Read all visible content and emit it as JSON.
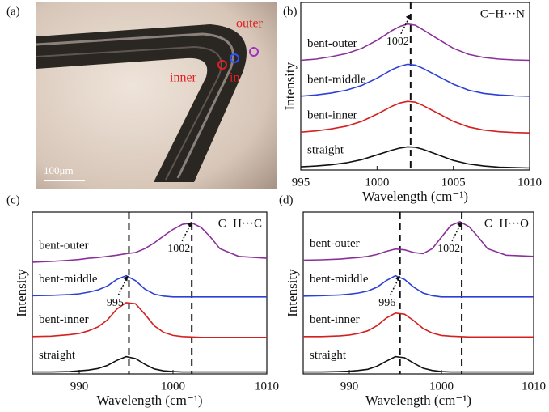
{
  "photo_panel": {
    "label": "(a)",
    "outer": "outer",
    "inner": "inner",
    "in": "in",
    "scale": "100μm"
  },
  "chart_data": [
    {
      "type": "line",
      "panel": "(b)",
      "label": "C−H···N",
      "x_label": "Wavelength (cm⁻¹)",
      "y_label": "Intensity",
      "x": [
        995,
        996,
        997,
        998,
        999,
        1000,
        1001,
        1001.5,
        1002,
        1002.5,
        1003,
        1004,
        1005,
        1006,
        1007,
        1008,
        1009,
        1010
      ],
      "xlim": [
        995,
        1010
      ],
      "xticks": [
        995,
        1000,
        1005,
        1010
      ],
      "ylim": [
        0,
        4.2
      ],
      "reference_lines": [
        1002.2
      ],
      "annotations": [
        {
          "text": "1002",
          "x": 1002.2,
          "y": 3.9
        }
      ],
      "series": [
        {
          "name": "straight",
          "color": "#111111",
          "values": [
            0.08,
            0.1,
            0.13,
            0.18,
            0.26,
            0.38,
            0.5,
            0.55,
            0.58,
            0.57,
            0.52,
            0.38,
            0.24,
            0.15,
            0.1,
            0.07,
            0.06,
            0.05
          ]
        },
        {
          "name": "bent-inner",
          "color": "#d42020",
          "values": [
            0.95,
            0.98,
            1.03,
            1.1,
            1.22,
            1.4,
            1.6,
            1.68,
            1.72,
            1.7,
            1.62,
            1.42,
            1.22,
            1.08,
            1.0,
            0.96,
            0.94,
            0.93
          ]
        },
        {
          "name": "bent-middle",
          "color": "#2c3fd6",
          "values": [
            1.85,
            1.88,
            1.93,
            2.0,
            2.12,
            2.3,
            2.52,
            2.6,
            2.65,
            2.63,
            2.55,
            2.35,
            2.15,
            2.0,
            1.92,
            1.88,
            1.86,
            1.85
          ]
        },
        {
          "name": "bent-outer",
          "color": "#8b2f9b",
          "values": [
            2.75,
            2.78,
            2.84,
            2.92,
            3.05,
            3.25,
            3.5,
            3.6,
            3.66,
            3.63,
            3.52,
            3.28,
            3.05,
            2.9,
            2.82,
            2.78,
            2.76,
            2.75
          ]
        }
      ]
    },
    {
      "type": "line",
      "panel": "(c)",
      "label": "C−H···C",
      "x_label": "Wavelength (cm⁻¹)",
      "y_label": "Intensity",
      "x": [
        985,
        987,
        989,
        990,
        991,
        992,
        993,
        994,
        995,
        996,
        997,
        998,
        999,
        1000,
        1001,
        1002,
        1003,
        1004,
        1005,
        1007,
        1010
      ],
      "xlim": [
        985,
        1010
      ],
      "xticks": [
        990,
        1000,
        1010
      ],
      "ylim": [
        0,
        4.2
      ],
      "reference_lines": [
        995.3,
        1002
      ],
      "annotations": [
        {
          "text": "1002",
          "x": 1002,
          "y": 3.95
        },
        {
          "text": "995",
          "x": 995.2,
          "y": 2.55
        }
      ],
      "series": [
        {
          "name": "straight",
          "color": "#111111",
          "values": [
            0.05,
            0.05,
            0.06,
            0.08,
            0.1,
            0.14,
            0.22,
            0.35,
            0.45,
            0.4,
            0.25,
            0.13,
            0.08,
            0.06,
            0.05,
            0.05,
            0.05,
            0.05,
            0.05,
            0.05,
            0.05
          ]
        },
        {
          "name": "bent-inner",
          "color": "#d42020",
          "values": [
            0.97,
            0.98,
            1.02,
            1.05,
            1.12,
            1.22,
            1.4,
            1.68,
            1.85,
            1.82,
            1.55,
            1.25,
            1.08,
            1.0,
            0.97,
            0.96,
            0.95,
            0.95,
            0.95,
            0.95,
            0.95
          ]
        },
        {
          "name": "bent-middle",
          "color": "#2c3fd6",
          "values": [
            2.03,
            2.04,
            2.06,
            2.08,
            2.12,
            2.18,
            2.28,
            2.45,
            2.55,
            2.42,
            2.2,
            2.07,
            2.02,
            2.0,
            2.0,
            2.0,
            2.0,
            2.0,
            2.0,
            2.0,
            2.0
          ]
        },
        {
          "name": "bent-outer",
          "color": "#8b2f9b",
          "values": [
            2.9,
            2.92,
            2.95,
            2.97,
            3.0,
            3.02,
            3.05,
            3.08,
            3.12,
            3.15,
            3.25,
            3.4,
            3.58,
            3.75,
            3.88,
            3.92,
            3.8,
            3.55,
            3.25,
            3.05,
            3.0
          ]
        }
      ]
    },
    {
      "type": "line",
      "panel": "(d)",
      "label": "C−H···O",
      "x_label": "Wavelength (cm⁻¹)",
      "y_label": "Intensity",
      "x": [
        985,
        987,
        989,
        990,
        991,
        992,
        993,
        994,
        995,
        996,
        997,
        998,
        999,
        1000,
        1001,
        1002,
        1003,
        1004,
        1005,
        1007,
        1010
      ],
      "xlim": [
        985,
        1010
      ],
      "xticks": [
        990,
        1000,
        1010
      ],
      "ylim": [
        0,
        4.2
      ],
      "reference_lines": [
        995.5,
        1002.2
      ],
      "annotations": [
        {
          "text": "1002",
          "x": 1002.2,
          "y": 3.95
        },
        {
          "text": "996",
          "x": 995.5,
          "y": 2.55
        }
      ],
      "series": [
        {
          "name": "straight",
          "color": "#111111",
          "values": [
            0.05,
            0.05,
            0.06,
            0.07,
            0.09,
            0.12,
            0.2,
            0.33,
            0.45,
            0.42,
            0.28,
            0.15,
            0.09,
            0.06,
            0.05,
            0.05,
            0.05,
            0.05,
            0.05,
            0.05,
            0.05
          ]
        },
        {
          "name": "bent-inner",
          "color": "#d42020",
          "values": [
            0.97,
            0.97,
            0.99,
            1.01,
            1.05,
            1.12,
            1.25,
            1.45,
            1.58,
            1.55,
            1.38,
            1.18,
            1.06,
            1.0,
            0.98,
            0.97,
            0.96,
            0.96,
            0.96,
            0.96,
            0.96
          ]
        },
        {
          "name": "bent-middle",
          "color": "#2c3fd6",
          "values": [
            2.02,
            2.03,
            2.05,
            2.07,
            2.1,
            2.15,
            2.25,
            2.42,
            2.55,
            2.45,
            2.25,
            2.1,
            2.03,
            2.0,
            2.0,
            2.0,
            2.0,
            2.0,
            2.0,
            2.0,
            2.0
          ]
        },
        {
          "name": "bent-outer",
          "color": "#8b2f9b",
          "values": [
            2.95,
            2.96,
            2.98,
            3.0,
            3.02,
            3.05,
            3.1,
            3.18,
            3.24,
            3.22,
            3.15,
            3.12,
            3.25,
            3.55,
            3.85,
            3.95,
            3.82,
            3.55,
            3.25,
            3.08,
            3.05
          ]
        }
      ]
    }
  ]
}
